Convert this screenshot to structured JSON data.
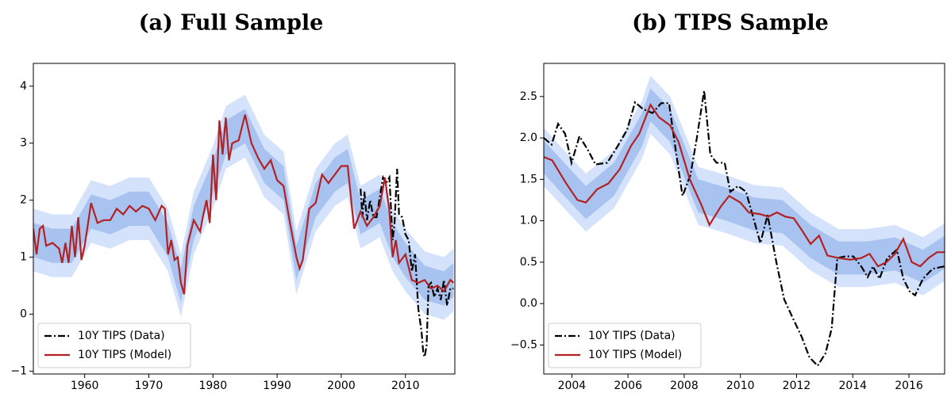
{
  "chart_data": [
    {
      "type": "line",
      "title": "(a) Full Sample",
      "xlim": [
        1952,
        2017.7
      ],
      "ylim": [
        -1.05,
        4.4
      ],
      "xticks": [
        1960,
        1970,
        1980,
        1990,
        2000,
        2010
      ],
      "yticks": [
        {
          "value": -1,
          "label": "−1"
        },
        0,
        1,
        2,
        3,
        4
      ],
      "legend": "lower left",
      "bands": [
        {
          "color": "#d4e2fb",
          "x": [
            1952,
            1955,
            1958,
            1961,
            1964,
            1967,
            1970,
            1973,
            1975,
            1977,
            1980,
            1982,
            1985,
            1988,
            1991,
            1993,
            1996,
            1999,
            2001,
            2003,
            2006,
            2008,
            2010,
            2013,
            2016,
            2017.5
          ],
          "lower": [
            0.75,
            0.65,
            0.65,
            1.25,
            1.15,
            1.3,
            1.3,
            0.75,
            -0.05,
            1.05,
            1.85,
            2.55,
            2.75,
            2.05,
            1.75,
            0.35,
            1.45,
            1.9,
            2.05,
            1.15,
            1.35,
            0.75,
            0.4,
            0.0,
            -0.1,
            0.05
          ],
          "upper": [
            1.85,
            1.75,
            1.75,
            2.35,
            2.25,
            2.4,
            2.4,
            1.85,
            1.05,
            2.15,
            2.95,
            3.65,
            3.85,
            3.15,
            2.85,
            1.45,
            2.55,
            3.0,
            3.15,
            2.25,
            2.45,
            1.85,
            1.5,
            1.1,
            1.0,
            1.15
          ]
        },
        {
          "color": "#a9c3f1",
          "x": [
            1952,
            1955,
            1958,
            1961,
            1964,
            1967,
            1970,
            1973,
            1975,
            1977,
            1980,
            1982,
            1985,
            1988,
            1991,
            1993,
            1996,
            1999,
            2001,
            2003,
            2006,
            2008,
            2010,
            2013,
            2016,
            2017.5
          ],
          "lower": [
            1.0,
            0.9,
            0.9,
            1.5,
            1.4,
            1.55,
            1.55,
            1.0,
            0.2,
            1.3,
            2.1,
            2.8,
            3.0,
            2.3,
            2.0,
            0.6,
            1.7,
            2.15,
            2.3,
            1.4,
            1.6,
            1.0,
            0.65,
            0.25,
            0.15,
            0.3
          ],
          "upper": [
            1.6,
            1.5,
            1.5,
            2.1,
            2.0,
            2.15,
            2.15,
            1.6,
            0.8,
            1.9,
            2.7,
            3.4,
            3.6,
            2.9,
            2.6,
            1.2,
            2.3,
            2.75,
            2.9,
            2.0,
            2.2,
            1.6,
            1.25,
            0.85,
            0.75,
            0.9
          ]
        }
      ],
      "series": [
        {
          "name": "10Y TIPS (Data)",
          "color": "#000000",
          "linestyle": "dashdot",
          "x": [
            2003,
            2003.3,
            2003.6,
            2004,
            2004.5,
            2005,
            2005.5,
            2006,
            2006.5,
            2007,
            2007.5,
            2008,
            2008.3,
            2008.7,
            2009,
            2009.5,
            2010,
            2010.5,
            2011,
            2011.5,
            2012,
            2012.5,
            2012.8,
            2013,
            2013.3,
            2013.6,
            2014,
            2014.5,
            2015,
            2015.5,
            2016,
            2016.5,
            2017,
            2017.5
          ],
          "values": [
            2.2,
            1.7,
            2.15,
            1.65,
            2.0,
            1.7,
            1.7,
            2.05,
            2.4,
            2.3,
            2.4,
            1.3,
            1.6,
            2.55,
            1.75,
            1.7,
            1.4,
            1.3,
            0.75,
            1.05,
            0.1,
            -0.3,
            -0.7,
            -0.75,
            -0.55,
            0.5,
            0.55,
            0.3,
            0.45,
            0.25,
            0.6,
            0.15,
            0.45,
            0.45
          ]
        },
        {
          "name": "10Y TIPS (Model)",
          "color": "#b22222",
          "linestyle": "solid",
          "x": [
            1952,
            1952.5,
            1953,
            1953.5,
            1954,
            1955,
            1956,
            1956.5,
            1957,
            1957.5,
            1958,
            1958.5,
            1959,
            1959.5,
            1960,
            1961,
            1962,
            1963,
            1964,
            1965,
            1966,
            1967,
            1968,
            1969,
            1970,
            1971,
            1972,
            1972.5,
            1973,
            1973.5,
            1974,
            1974.5,
            1975,
            1975.5,
            1976,
            1977,
            1978,
            1978.5,
            1979,
            1979.5,
            1980,
            1980.5,
            1981,
            1981.5,
            1982,
            1982.5,
            1983,
            1984,
            1985,
            1986,
            1987,
            1988,
            1989,
            1990,
            1991,
            1992,
            1993,
            1993.5,
            1994,
            1995,
            1996,
            1997,
            1998,
            1999,
            2000,
            2001,
            2002,
            2003,
            2004,
            2005,
            2006,
            2006.8,
            2007.5,
            2008,
            2008.5,
            2009,
            2010,
            2011,
            2012,
            2013,
            2014,
            2015,
            2016,
            2017,
            2017.5
          ],
          "values": [
            1.5,
            1.05,
            1.5,
            1.55,
            1.2,
            1.25,
            1.15,
            0.9,
            1.25,
            0.9,
            1.55,
            1.0,
            1.7,
            0.95,
            1.2,
            1.95,
            1.6,
            1.65,
            1.65,
            1.85,
            1.75,
            1.9,
            1.8,
            1.9,
            1.85,
            1.65,
            1.9,
            1.85,
            1.05,
            1.3,
            0.95,
            1.0,
            0.55,
            0.35,
            1.2,
            1.65,
            1.45,
            1.75,
            2.0,
            1.6,
            2.8,
            2.0,
            3.4,
            2.8,
            3.45,
            2.7,
            3.0,
            3.05,
            3.5,
            3.0,
            2.75,
            2.55,
            2.7,
            2.35,
            2.25,
            1.6,
            1.0,
            0.8,
            0.95,
            1.85,
            1.95,
            2.45,
            2.3,
            2.45,
            2.6,
            2.6,
            1.5,
            1.8,
            1.55,
            1.7,
            1.9,
            2.4,
            1.8,
            1.0,
            1.3,
            0.9,
            1.05,
            0.6,
            0.55,
            0.6,
            0.45,
            0.5,
            0.4,
            0.6,
            0.55
          ]
        }
      ]
    },
    {
      "type": "line",
      "title": "(b) TIPS Sample",
      "xlim": [
        2003,
        2017.27
      ],
      "ylim": [
        -0.85,
        2.9
      ],
      "xticks": [
        2004,
        2006,
        2008,
        2010,
        2012,
        2014,
        2016
      ],
      "yticks": [
        {
          "value": -0.5,
          "label": "−0.5"
        },
        {
          "value": 0,
          "label": "0.0"
        },
        0.5,
        {
          "value": 1,
          "label": "1.0"
        },
        1.5,
        {
          "value": 2,
          "label": "2.0"
        },
        2.5
      ],
      "legend": "lower left",
      "bands": [
        {
          "color": "#d4e2fb",
          "x": [
            2003,
            2004,
            2004.5,
            2005.5,
            2006.5,
            2006.8,
            2007.5,
            2008.5,
            2009.5,
            2010.5,
            2011.5,
            2012.5,
            2013.5,
            2014.5,
            2015.5,
            2016.5,
            2017.27
          ],
          "lower": [
            1.42,
            1.05,
            0.87,
            1.15,
            1.75,
            2.05,
            1.8,
            0.95,
            0.85,
            0.73,
            0.7,
            0.4,
            0.2,
            0.2,
            0.25,
            0.1,
            0.27
          ],
          "upper": [
            2.12,
            1.75,
            1.57,
            1.85,
            2.45,
            2.75,
            2.5,
            1.65,
            1.55,
            1.43,
            1.4,
            1.1,
            0.9,
            0.9,
            0.95,
            0.8,
            0.97
          ]
        },
        {
          "color": "#a9c3f1",
          "x": [
            2003,
            2004,
            2004.5,
            2005.5,
            2006.5,
            2006.8,
            2007.5,
            2008.5,
            2009.5,
            2010.5,
            2011.5,
            2012.5,
            2013.5,
            2014.5,
            2015.5,
            2016.5,
            2017.27
          ],
          "lower": [
            1.57,
            1.2,
            1.02,
            1.3,
            1.9,
            2.2,
            1.95,
            1.1,
            1.0,
            0.88,
            0.85,
            0.55,
            0.35,
            0.35,
            0.4,
            0.25,
            0.42
          ],
          "upper": [
            1.97,
            1.6,
            1.42,
            1.7,
            2.3,
            2.6,
            2.35,
            1.5,
            1.4,
            1.28,
            1.25,
            0.95,
            0.75,
            0.75,
            0.8,
            0.65,
            0.82
          ]
        }
      ],
      "series": [
        {
          "name": "10Y TIPS (Data)",
          "color": "#000000",
          "linestyle": "dashdot",
          "x": [
            2003,
            2003.28,
            2003.51,
            2003.76,
            2003.99,
            2004.27,
            2004.58,
            2004.84,
            2005.26,
            2005.63,
            2005.97,
            2006.25,
            2006.53,
            2006.87,
            2007.18,
            2007.46,
            2007.72,
            2007.94,
            2008.22,
            2008.45,
            2008.71,
            2008.93,
            2009.15,
            2009.44,
            2009.64,
            2009.92,
            2010.2,
            2010.49,
            2010.71,
            2010.97,
            2011.28,
            2011.56,
            2011.9,
            2012.18,
            2012.46,
            2012.75,
            2013.03,
            2013.25,
            2013.45,
            2013.73,
            2014.02,
            2014.3,
            2014.53,
            2014.72,
            2014.95,
            2015.23,
            2015.57,
            2015.8,
            2016.02,
            2016.22,
            2016.5,
            2016.84,
            2017.27
          ],
          "values": [
            2.0,
            1.92,
            2.17,
            2.05,
            1.7,
            2.02,
            1.85,
            1.68,
            1.7,
            1.9,
            2.1,
            2.43,
            2.35,
            2.3,
            2.42,
            2.42,
            1.8,
            1.3,
            1.55,
            2.0,
            2.57,
            1.8,
            1.7,
            1.7,
            1.35,
            1.42,
            1.35,
            1.0,
            0.73,
            1.07,
            0.5,
            0.05,
            -0.2,
            -0.4,
            -0.65,
            -0.75,
            -0.6,
            -0.3,
            0.55,
            0.57,
            0.57,
            0.45,
            0.32,
            0.45,
            0.3,
            0.55,
            0.65,
            0.3,
            0.15,
            0.1,
            0.3,
            0.42,
            0.45
          ]
        },
        {
          "name": "10Y TIPS (Model)",
          "color": "#b22222",
          "linestyle": "solid",
          "x": [
            2003,
            2003.3,
            2003.8,
            2004.2,
            2004.5,
            2004.9,
            2005.3,
            2005.7,
            2006.1,
            2006.4,
            2006.8,
            2007.1,
            2007.5,
            2007.8,
            2008.2,
            2008.6,
            2008.9,
            2009.3,
            2009.6,
            2010,
            2010.3,
            2010.7,
            2011,
            2011.3,
            2011.6,
            2011.9,
            2012.2,
            2012.5,
            2012.8,
            2013.1,
            2013.5,
            2013.9,
            2014.3,
            2014.6,
            2014.9,
            2015.2,
            2015.5,
            2015.8,
            2016.1,
            2016.4,
            2016.7,
            2017,
            2017.27
          ],
          "values": [
            1.77,
            1.73,
            1.45,
            1.25,
            1.22,
            1.38,
            1.45,
            1.62,
            1.9,
            2.05,
            2.4,
            2.25,
            2.15,
            1.95,
            1.5,
            1.2,
            0.95,
            1.17,
            1.3,
            1.22,
            1.1,
            1.08,
            1.05,
            1.1,
            1.05,
            1.03,
            0.88,
            0.72,
            0.82,
            0.58,
            0.55,
            0.53,
            0.55,
            0.6,
            0.45,
            0.5,
            0.6,
            0.78,
            0.5,
            0.45,
            0.55,
            0.62,
            0.62
          ]
        }
      ]
    }
  ]
}
